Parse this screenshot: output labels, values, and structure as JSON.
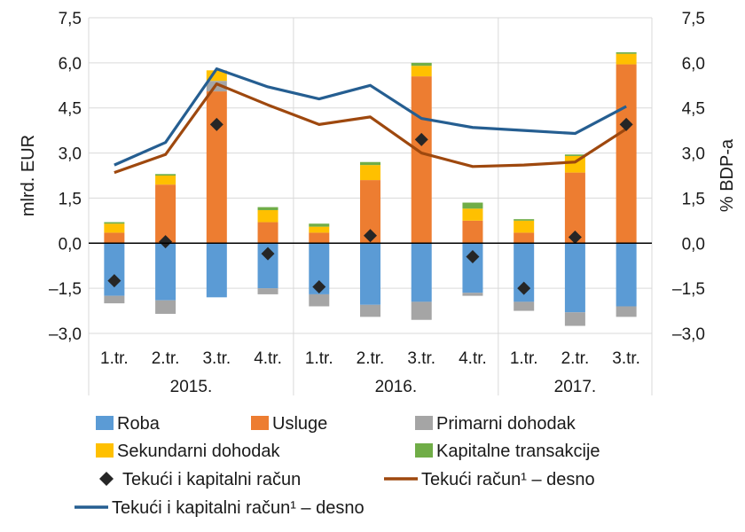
{
  "chart_data": {
    "type": "bar",
    "stacked": true,
    "categories": [
      "1.tr.",
      "2.tr.",
      "3.tr.",
      "4.tr.",
      "1.tr.",
      "2.tr.",
      "3.tr.",
      "4.tr.",
      "1.tr.",
      "2.tr.",
      "3.tr."
    ],
    "years": [
      {
        "label": "2015.",
        "count": 4
      },
      {
        "label": "2016.",
        "count": 4
      },
      {
        "label": "2017.",
        "count": 3
      }
    ],
    "ylabel_left": "mlrd. EUR",
    "ylabel_right": "% BDP-a",
    "ylim": [
      -3.0,
      7.5
    ],
    "yticks": [
      -3.0,
      -1.5,
      0.0,
      1.5,
      3.0,
      4.5,
      6.0,
      7.5
    ],
    "ytick_labels": [
      "–3,0",
      "–1,5",
      "0,0",
      "1,5",
      "3,0",
      "4,5",
      "6,0",
      "7,5"
    ],
    "grid": true,
    "series": [
      {
        "name": "Roba",
        "kind": "bar",
        "color": "#5b9bd5",
        "values": [
          -1.75,
          -1.9,
          -1.8,
          -1.5,
          -1.7,
          -2.05,
          -1.95,
          -1.65,
          -1.95,
          -2.3,
          -2.1
        ]
      },
      {
        "name": "Usluge",
        "kind": "bar",
        "color": "#ed7d31",
        "values": [
          0.35,
          1.95,
          5.05,
          0.7,
          0.35,
          2.1,
          5.55,
          0.75,
          0.35,
          2.35,
          5.95
        ]
      },
      {
        "name": "Primarni dohodak",
        "kind": "bar",
        "color": "#a5a5a5",
        "values": [
          -0.25,
          -0.45,
          0.35,
          -0.2,
          -0.4,
          -0.4,
          -0.6,
          -0.1,
          -0.3,
          -0.45,
          -0.35
        ]
      },
      {
        "name": "Sekundarni dohodak",
        "kind": "bar",
        "color": "#ffc000",
        "values": [
          0.3,
          0.3,
          0.35,
          0.4,
          0.2,
          0.5,
          0.35,
          0.4,
          0.4,
          0.55,
          0.35
        ]
      },
      {
        "name": "Kapitalne transakcije",
        "kind": "bar",
        "color": "#70ad47",
        "values": [
          0.05,
          0.05,
          0.0,
          0.1,
          0.1,
          0.1,
          0.1,
          0.2,
          0.05,
          0.05,
          0.05
        ]
      },
      {
        "name": "Tekući i kapitalni račun",
        "kind": "marker",
        "color": "#262626",
        "values": [
          -1.25,
          0.05,
          3.95,
          -0.35,
          -1.45,
          0.25,
          3.45,
          -0.45,
          -1.5,
          0.2,
          3.95
        ]
      },
      {
        "name": "Tekući račun¹ – desno",
        "kind": "line",
        "color": "#9e480e",
        "values": [
          2.35,
          2.95,
          5.3,
          4.6,
          3.95,
          4.2,
          3.0,
          2.55,
          2.6,
          2.7,
          3.8
        ]
      },
      {
        "name": "Tekući i kapitalni račun¹ – desno",
        "kind": "line",
        "color": "#255e91",
        "values": [
          2.6,
          3.35,
          5.8,
          5.2,
          4.8,
          5.25,
          4.15,
          3.85,
          3.75,
          3.65,
          4.55
        ]
      }
    ],
    "legend_position": "bottom"
  }
}
